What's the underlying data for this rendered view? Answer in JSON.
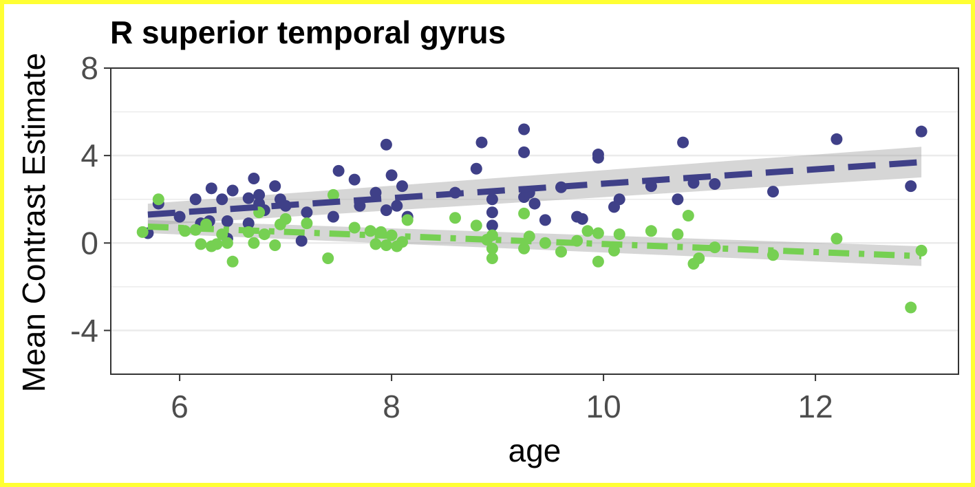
{
  "chart_data": {
    "type": "scatter",
    "title": "R superior temporal gyrus",
    "xlabel": "age",
    "ylabel": "Mean Contrast Estimate",
    "xlim": [
      5.35,
      13.35
    ],
    "ylim": [
      -6,
      8
    ],
    "xticks": [
      6,
      8,
      10,
      12
    ],
    "yticks": [
      -4,
      0,
      4,
      8
    ],
    "ytick_labels": [
      "-4",
      "0",
      "4",
      "8"
    ],
    "xtick_labels": [
      "6",
      "8",
      "10",
      "12"
    ],
    "grid": true,
    "legend": "none",
    "series": [
      {
        "color": "#3f4088",
        "line_style": "dashed",
        "fit": {
          "x": [
            5.7,
            13.0
          ],
          "y": [
            1.3,
            3.7
          ],
          "ci_lower": [
            0.8,
            3.0
          ],
          "ci_upper": [
            1.8,
            4.4
          ]
        },
        "points": [
          [
            5.7,
            0.45
          ],
          [
            5.8,
            1.8
          ],
          [
            6.0,
            1.2
          ],
          [
            6.15,
            2.0
          ],
          [
            6.2,
            0.9
          ],
          [
            6.28,
            1.0
          ],
          [
            6.3,
            2.5
          ],
          [
            6.4,
            2.0
          ],
          [
            6.45,
            1.0
          ],
          [
            6.45,
            0.2
          ],
          [
            6.5,
            2.4
          ],
          [
            6.65,
            0.9
          ],
          [
            6.65,
            2.05
          ],
          [
            6.7,
            2.95
          ],
          [
            6.75,
            2.2
          ],
          [
            6.75,
            1.8
          ],
          [
            6.8,
            1.5
          ],
          [
            6.9,
            2.6
          ],
          [
            6.95,
            2.0
          ],
          [
            7.0,
            1.7
          ],
          [
            7.15,
            0.1
          ],
          [
            7.2,
            1.4
          ],
          [
            7.45,
            1.2
          ],
          [
            7.5,
            3.3
          ],
          [
            7.65,
            2.9
          ],
          [
            7.7,
            1.7
          ],
          [
            7.85,
            2.3
          ],
          [
            7.95,
            4.5
          ],
          [
            7.95,
            1.5
          ],
          [
            8.0,
            3.1
          ],
          [
            8.05,
            1.7
          ],
          [
            8.1,
            2.6
          ],
          [
            8.15,
            1.2
          ],
          [
            8.6,
            2.3
          ],
          [
            8.8,
            3.4
          ],
          [
            8.85,
            4.6
          ],
          [
            8.95,
            2.0
          ],
          [
            8.95,
            0.8
          ],
          [
            8.95,
            1.4
          ],
          [
            9.25,
            5.2
          ],
          [
            9.25,
            2.1
          ],
          [
            9.25,
            4.15
          ],
          [
            9.3,
            2.3
          ],
          [
            9.35,
            1.8
          ],
          [
            9.45,
            1.05
          ],
          [
            9.6,
            2.55
          ],
          [
            9.75,
            1.2
          ],
          [
            9.8,
            1.1
          ],
          [
            9.95,
            4.05
          ],
          [
            9.95,
            3.9
          ],
          [
            10.1,
            1.65
          ],
          [
            10.15,
            2.0
          ],
          [
            10.45,
            2.6
          ],
          [
            10.7,
            2.0
          ],
          [
            10.75,
            4.6
          ],
          [
            10.85,
            2.75
          ],
          [
            11.05,
            2.7
          ],
          [
            11.6,
            2.35
          ],
          [
            12.2,
            4.75
          ],
          [
            12.9,
            2.6
          ],
          [
            13.0,
            5.1
          ]
        ]
      },
      {
        "color": "#76d052",
        "line_style": "dotdash",
        "fit": {
          "x": [
            5.7,
            13.0
          ],
          "y": [
            0.75,
            -0.6
          ],
          "ci_lower": [
            0.45,
            -1.05
          ],
          "ci_upper": [
            1.05,
            -0.15
          ]
        },
        "points": [
          [
            5.65,
            0.5
          ],
          [
            5.8,
            2.0
          ],
          [
            6.05,
            0.55
          ],
          [
            6.15,
            0.6
          ],
          [
            6.2,
            -0.05
          ],
          [
            6.25,
            0.85
          ],
          [
            6.3,
            -0.15
          ],
          [
            6.35,
            -0.05
          ],
          [
            6.4,
            0.4
          ],
          [
            6.45,
            0.0
          ],
          [
            6.5,
            -0.85
          ],
          [
            6.65,
            0.5
          ],
          [
            6.7,
            0.0
          ],
          [
            6.75,
            1.4
          ],
          [
            6.8,
            0.4
          ],
          [
            6.9,
            -0.1
          ],
          [
            6.95,
            0.85
          ],
          [
            7.0,
            1.1
          ],
          [
            7.2,
            0.9
          ],
          [
            7.4,
            -0.7
          ],
          [
            7.45,
            2.2
          ],
          [
            7.65,
            0.7
          ],
          [
            7.8,
            0.55
          ],
          [
            7.85,
            -0.05
          ],
          [
            7.9,
            0.5
          ],
          [
            7.95,
            -0.1
          ],
          [
            8.0,
            0.35
          ],
          [
            8.05,
            -0.15
          ],
          [
            8.1,
            0.05
          ],
          [
            8.15,
            1.05
          ],
          [
            8.6,
            1.15
          ],
          [
            8.8,
            0.8
          ],
          [
            8.9,
            0.15
          ],
          [
            8.95,
            -0.7
          ],
          [
            8.95,
            -0.25
          ],
          [
            8.95,
            0.35
          ],
          [
            9.25,
            -0.25
          ],
          [
            9.25,
            1.35
          ],
          [
            9.3,
            0.3
          ],
          [
            9.45,
            0.0
          ],
          [
            9.6,
            -0.4
          ],
          [
            9.75,
            0.1
          ],
          [
            9.85,
            0.55
          ],
          [
            9.95,
            -0.85
          ],
          [
            9.95,
            0.45
          ],
          [
            10.1,
            -0.35
          ],
          [
            10.15,
            0.4
          ],
          [
            10.45,
            0.55
          ],
          [
            10.7,
            0.4
          ],
          [
            10.8,
            1.25
          ],
          [
            10.85,
            -0.95
          ],
          [
            10.9,
            -0.7
          ],
          [
            11.05,
            -0.2
          ],
          [
            11.6,
            -0.55
          ],
          [
            12.2,
            0.2
          ],
          [
            12.9,
            -2.95
          ],
          [
            13.0,
            -0.35
          ]
        ]
      }
    ]
  }
}
